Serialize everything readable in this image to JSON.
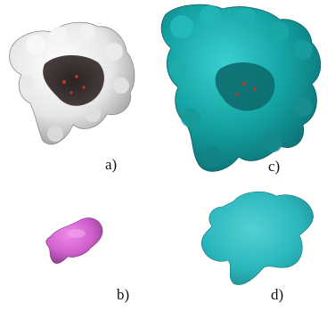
{
  "panels": [
    {
      "label": "a)",
      "subject": "molecular-surface-cavity",
      "color": "#f2f2f2"
    },
    {
      "label": "b)",
      "subject": "ligand-volume",
      "color": "#d35fd0"
    },
    {
      "label": "c)",
      "subject": "molecular-surface-cavity",
      "color": "#1aa3a3"
    },
    {
      "label": "d)",
      "subject": "ligand-volume",
      "color": "#2ab8bd"
    }
  ]
}
